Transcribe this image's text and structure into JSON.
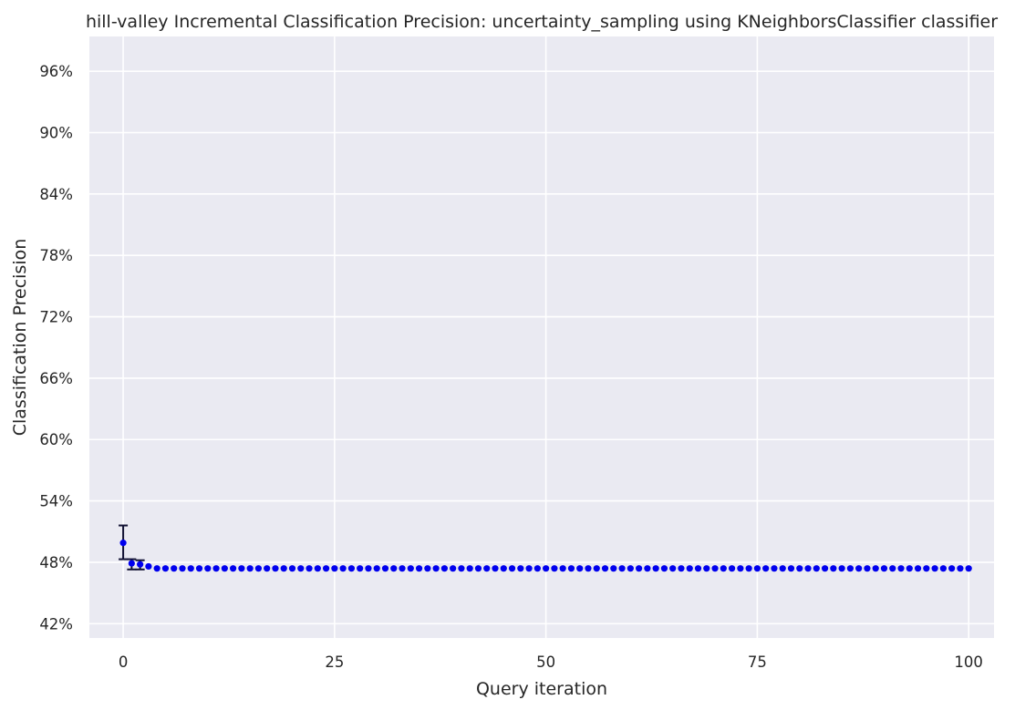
{
  "chart_data": {
    "type": "scatter",
    "title": "hill-valley Incremental Classification Precision: uncertainty_sampling using KNeighborsClassifier classifier",
    "xlabel": "Query iteration",
    "ylabel": "Classification Precision",
    "xlim": [
      -4,
      103
    ],
    "ylim": [
      40.6,
      99.4
    ],
    "xticks": [
      0,
      25,
      50,
      75,
      100
    ],
    "xtick_labels": [
      "0",
      "25",
      "50",
      "75",
      "100"
    ],
    "yticks": [
      42,
      48,
      54,
      60,
      66,
      72,
      78,
      84,
      90,
      96
    ],
    "ytick_labels": [
      "42%",
      "48%",
      "54%",
      "60%",
      "66%",
      "72%",
      "78%",
      "84%",
      "90%",
      "96%"
    ],
    "grid": true,
    "background": "#eaeaf2",
    "grid_color": "#ffffff",
    "marker_color": "#0000ee",
    "errorbar_color": "#111133",
    "series": [
      {
        "x_start": 0,
        "x_end": 100,
        "initial_points": [
          {
            "x": 0,
            "y": 49.9,
            "yerr_low": 48.3,
            "yerr_high": 51.6
          },
          {
            "x": 1,
            "y": 47.9,
            "yerr_low": 47.3,
            "yerr_high": 48.3
          },
          {
            "x": 2,
            "y": 47.8,
            "yerr_low": 47.3,
            "yerr_high": 48.2
          },
          {
            "x": 3,
            "y": 47.6
          }
        ],
        "plateau_value": 47.4
      }
    ]
  }
}
